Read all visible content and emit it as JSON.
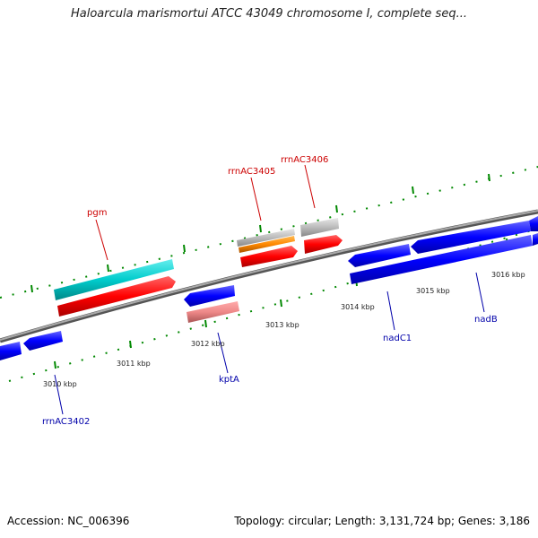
{
  "title": "Haloarcula marismortui ATCC 43049 chromosome I, complete seq...",
  "footer": {
    "accession": "Accession: NC_006396",
    "topology": "Topology: circular; Length: 3,131,724 bp; Genes: 3,186"
  },
  "scale_labels": [
    {
      "id": "kbp-3010",
      "text": "3010 kbp"
    },
    {
      "id": "kbp-3011",
      "text": "3011 kbp"
    },
    {
      "id": "kbp-3012",
      "text": "3012 kbp"
    },
    {
      "id": "kbp-3013",
      "text": "3013 kbp"
    },
    {
      "id": "kbp-3014",
      "text": "3014 kbp"
    },
    {
      "id": "kbp-3015",
      "text": "3015 kbp"
    },
    {
      "id": "kbp-3016",
      "text": "3016 kbp"
    }
  ],
  "gene_labels": [
    {
      "id": "pgm",
      "text": "pgm",
      "color": "#cc0000"
    },
    {
      "id": "rrnAC3405",
      "text": "rrnAC3405",
      "color": "#cc0000"
    },
    {
      "id": "rrnAC3406",
      "text": "rrnAC3406",
      "color": "#cc0000"
    },
    {
      "id": "kptA",
      "text": "kptA",
      "color": "#0000aa"
    },
    {
      "id": "nadC1",
      "text": "nadC1",
      "color": "#0000aa"
    },
    {
      "id": "nadB",
      "text": "nadB",
      "color": "#0000aa"
    },
    {
      "id": "rrnAC3402",
      "text": "rrnAC3402",
      "color": "#0000aa"
    }
  ],
  "colors": {
    "cds": "#ff0000",
    "gene_forward": "#0000ff",
    "rrna": "#00cccc",
    "misc": "#ff8800",
    "gray_feature": "#bbbbbb",
    "pink_feature": "#ee8888",
    "backbone": "#888888",
    "tick": "#008800"
  }
}
